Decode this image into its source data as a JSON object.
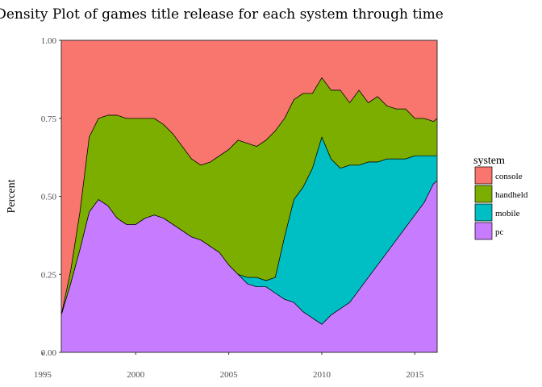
{
  "chart_data": {
    "type": "area",
    "title": "Density Plot of games title release for each system through time",
    "xlabel": "",
    "ylabel": "Percent",
    "xlim": [
      1996,
      2016.2
    ],
    "ylim": [
      0,
      1
    ],
    "xticks": [
      1995,
      2000,
      2005,
      2010,
      2015
    ],
    "yticks": [
      {
        "value": 0,
        "label": "0.00"
      },
      {
        "value": 0.25,
        "label": "0.25"
      },
      {
        "value": 0.5,
        "label": "0.50"
      },
      {
        "value": 0.75,
        "label": "0.75"
      },
      {
        "value": 1,
        "label": "1.00"
      }
    ],
    "stacked": true,
    "legend_title": "system",
    "legend_position": "right",
    "grid": false,
    "x": [
      1996,
      1996.5,
      1997,
      1997.5,
      1998,
      1998.5,
      1999,
      1999.5,
      2000,
      2000.5,
      2001,
      2001.5,
      2002,
      2002.5,
      2003,
      2003.5,
      2004,
      2004.5,
      2005,
      2005.5,
      2006,
      2006.5,
      2007,
      2007.5,
      2008,
      2008.5,
      2009,
      2009.5,
      2010,
      2010.5,
      2011,
      2011.5,
      2012,
      2012.5,
      2013,
      2013.5,
      2014,
      2014.5,
      2015,
      2015.5,
      2016,
      2016.2
    ],
    "series": [
      {
        "name": "pc",
        "color": "#C77CFF",
        "values": [
          0.12,
          0.22,
          0.33,
          0.45,
          0.49,
          0.47,
          0.43,
          0.41,
          0.41,
          0.43,
          0.44,
          0.43,
          0.41,
          0.39,
          0.37,
          0.36,
          0.34,
          0.32,
          0.28,
          0.25,
          0.22,
          0.21,
          0.21,
          0.19,
          0.17,
          0.16,
          0.13,
          0.11,
          0.09,
          0.12,
          0.14,
          0.16,
          0.2,
          0.24,
          0.28,
          0.32,
          0.36,
          0.4,
          0.44,
          0.48,
          0.54,
          0.55
        ]
      },
      {
        "name": "mobile",
        "color": "#00BFC4",
        "values": [
          0,
          0,
          0,
          0,
          0,
          0,
          0,
          0,
          0,
          0,
          0,
          0,
          0,
          0,
          0,
          0,
          0,
          0,
          0,
          0,
          0.02,
          0.03,
          0.02,
          0.05,
          0.2,
          0.33,
          0.4,
          0.48,
          0.6,
          0.5,
          0.45,
          0.44,
          0.4,
          0.37,
          0.33,
          0.3,
          0.26,
          0.22,
          0.19,
          0.15,
          0.09,
          0.08
        ]
      },
      {
        "name": "handheld",
        "color": "#7CAE00",
        "values": [
          0,
          0.04,
          0.12,
          0.24,
          0.26,
          0.29,
          0.33,
          0.34,
          0.34,
          0.32,
          0.31,
          0.3,
          0.29,
          0.27,
          0.25,
          0.24,
          0.27,
          0.31,
          0.37,
          0.43,
          0.43,
          0.42,
          0.45,
          0.47,
          0.38,
          0.32,
          0.3,
          0.24,
          0.19,
          0.22,
          0.25,
          0.2,
          0.24,
          0.19,
          0.21,
          0.17,
          0.16,
          0.16,
          0.12,
          0.12,
          0.11,
          0.12
        ]
      },
      {
        "name": "console",
        "color": "#F8766D",
        "values": [
          0.88,
          0.74,
          0.55,
          0.31,
          0.25,
          0.24,
          0.24,
          0.25,
          0.25,
          0.25,
          0.25,
          0.27,
          0.3,
          0.34,
          0.38,
          0.4,
          0.39,
          0.37,
          0.35,
          0.32,
          0.33,
          0.34,
          0.32,
          0.29,
          0.25,
          0.19,
          0.17,
          0.17,
          0.12,
          0.16,
          0.16,
          0.2,
          0.16,
          0.2,
          0.18,
          0.21,
          0.22,
          0.22,
          0.25,
          0.25,
          0.26,
          0.25
        ]
      }
    ],
    "legend_order": [
      "console",
      "handheld",
      "mobile",
      "pc"
    ]
  }
}
